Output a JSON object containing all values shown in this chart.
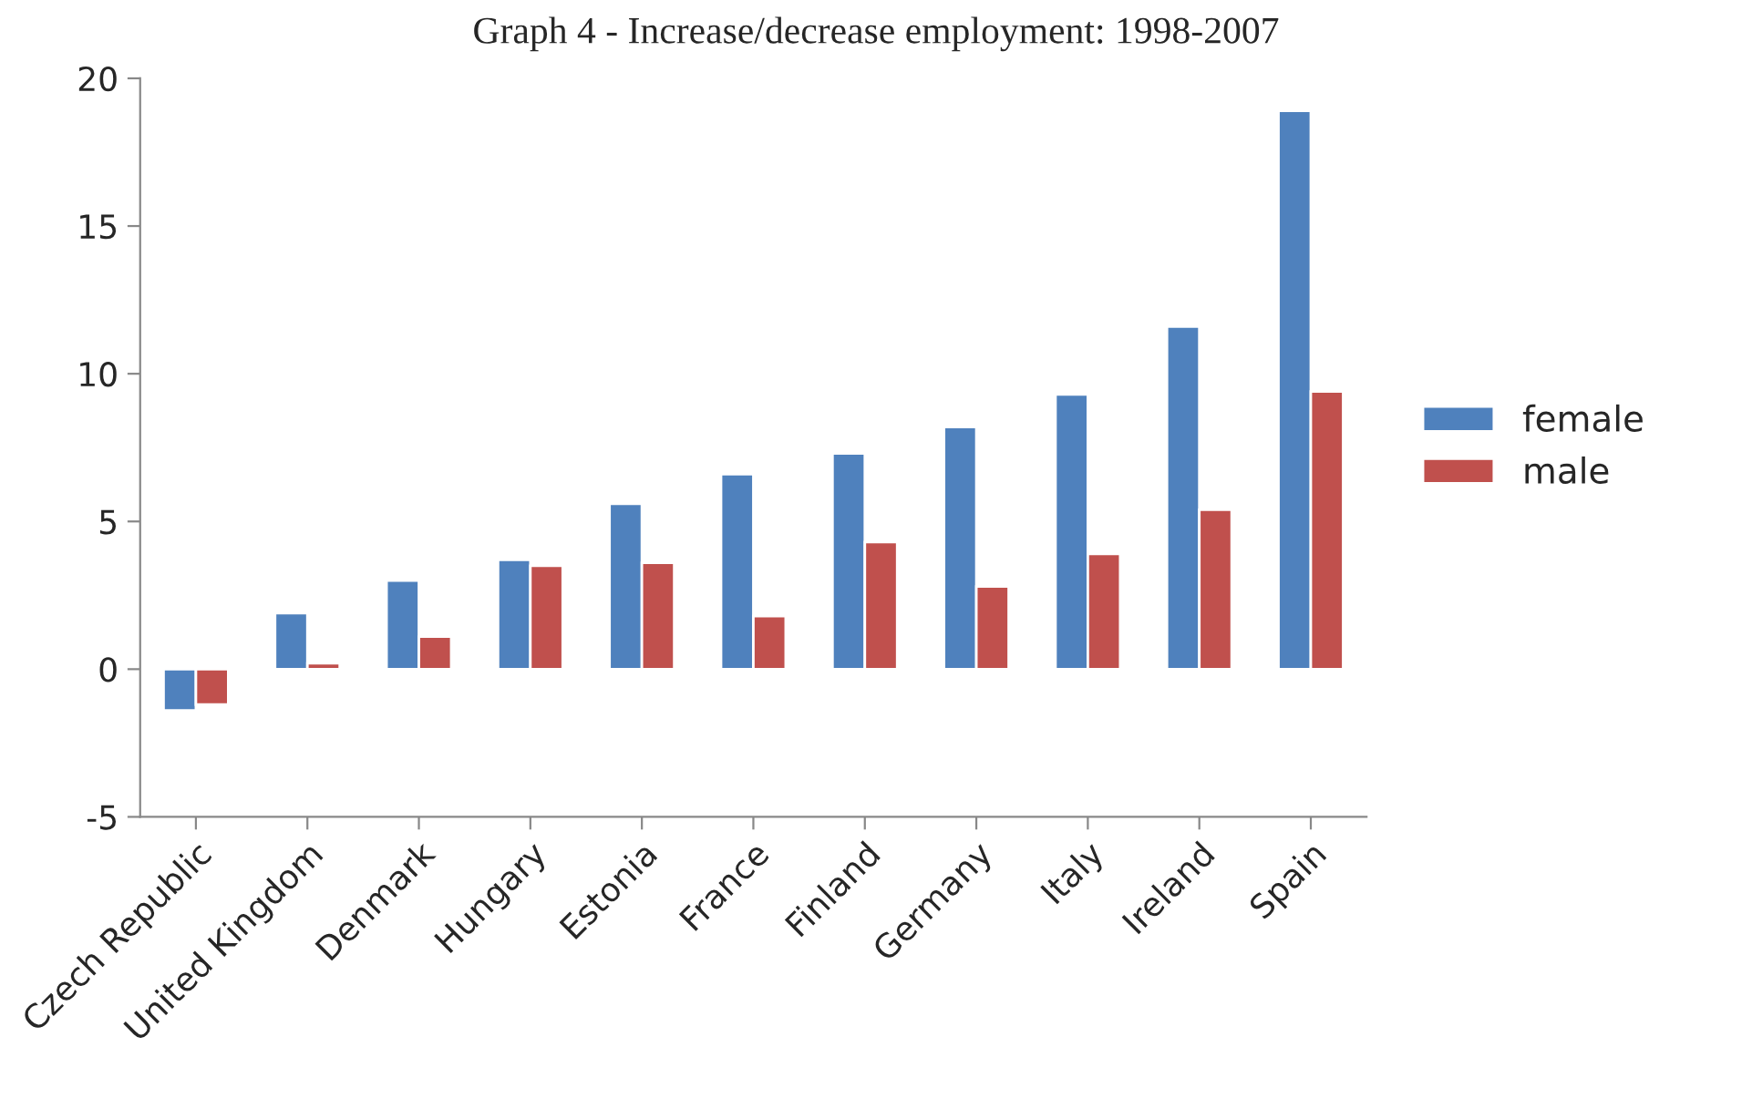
{
  "chart_data": {
    "type": "bar",
    "title": "Graph 4 - Increase/decrease employment: 1998-2007",
    "categories": [
      "Czech Republic",
      "United Kingdom",
      "Denmark",
      "Hungary",
      "Estonia",
      "France",
      "Finland",
      "Germany",
      "Italy",
      "Ireland",
      "Spain"
    ],
    "series": [
      {
        "name": "female",
        "color": "#4f81bd",
        "values": [
          -1.4,
          1.9,
          3.0,
          3.7,
          5.6,
          6.6,
          7.3,
          8.2,
          9.3,
          11.6,
          18.9
        ]
      },
      {
        "name": "male",
        "color": "#c0504d",
        "values": [
          -1.2,
          0.2,
          1.1,
          3.5,
          3.6,
          1.8,
          4.3,
          2.8,
          3.9,
          5.4,
          9.4
        ]
      }
    ],
    "ylim": [
      -5,
      20
    ],
    "yticks": [
      -5,
      0,
      5,
      10,
      15,
      20
    ],
    "legend": "right",
    "grid": false
  }
}
